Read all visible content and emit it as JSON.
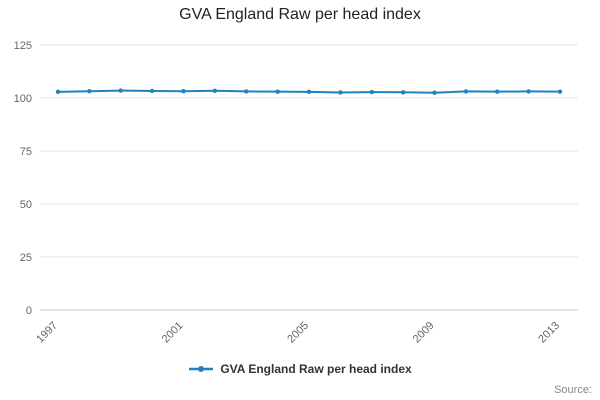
{
  "title": "GVA England Raw per head index",
  "legend": {
    "label": "GVA England Raw per head index"
  },
  "source_label": "Source:",
  "colors": {
    "line": "#2083c0",
    "grid": "#e6e6e6",
    "axis": "#cccccc",
    "tick_text": "#666666"
  },
  "chart_data": {
    "type": "line",
    "title": "GVA England Raw per head index",
    "x": [
      1997,
      1998,
      1999,
      2000,
      2001,
      2002,
      2003,
      2004,
      2005,
      2006,
      2007,
      2008,
      2009,
      2010,
      2011,
      2012,
      2013
    ],
    "series": [
      {
        "name": "GVA England Raw per head index",
        "values": [
          102.9,
          103.2,
          103.5,
          103.3,
          103.2,
          103.4,
          103.1,
          103.0,
          102.9,
          102.6,
          102.8,
          102.7,
          102.5,
          103.1,
          103.0,
          103.1,
          103.0
        ]
      }
    ],
    "x_tick_labels": [
      "1997",
      "2001",
      "2005",
      "2009",
      "2013"
    ],
    "y_ticks": [
      0,
      25,
      50,
      75,
      100,
      125
    ],
    "ylim": [
      0,
      125
    ],
    "xlabel": "",
    "ylabel": "",
    "grid": "horizontal",
    "legend_position": "bottom"
  }
}
